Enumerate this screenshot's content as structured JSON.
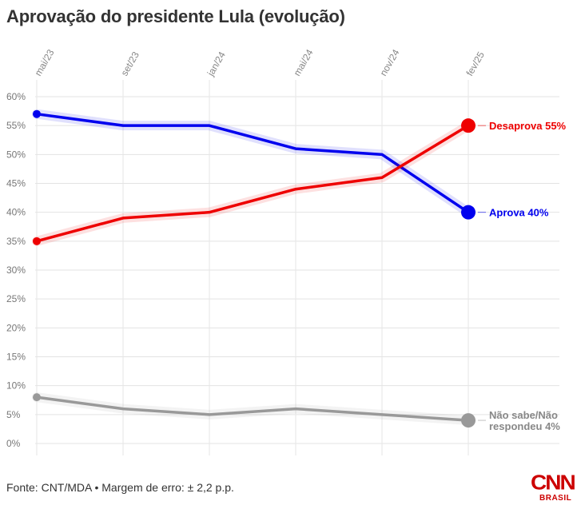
{
  "title": "Aprovação do presidente Lula (evolução)",
  "footer": "Fonte: CNT/MDA • Margem de erro: ± 2,2 p.p.",
  "logo": {
    "main": "CNN",
    "sub": "BRASIL"
  },
  "chart_data": {
    "type": "line",
    "x": [
      "mai/23",
      "set/23",
      "jan/24",
      "mai/24",
      "nov/24",
      "fev/25"
    ],
    "x_ticks": [
      "mai/23",
      "set/23",
      "jan/24",
      "mai/24",
      "nov/24",
      "fev/25"
    ],
    "y_ticks": [
      "60%",
      "55%",
      "50%",
      "45%",
      "40%",
      "35%",
      "30%",
      "25%",
      "20%",
      "15%",
      "10%",
      "5%",
      "0%"
    ],
    "ylim": [
      0,
      60
    ],
    "grid": true,
    "series": [
      {
        "name": "Aprova",
        "color": "#0000ee",
        "values": [
          57,
          55,
          55,
          51,
          50,
          40
        ],
        "label": "Aprova 40%"
      },
      {
        "name": "Desaprova",
        "color": "#ee0000",
        "values": [
          35,
          39,
          40,
          44,
          46,
          55
        ],
        "label": "Desaprova 55%"
      },
      {
        "name": "Não sabe/Não respondeu",
        "color": "#999999",
        "values": [
          8,
          6,
          5,
          6,
          5,
          4
        ],
        "label": [
          "Não sabe/Não",
          "respondeu 4%"
        ]
      }
    ]
  }
}
